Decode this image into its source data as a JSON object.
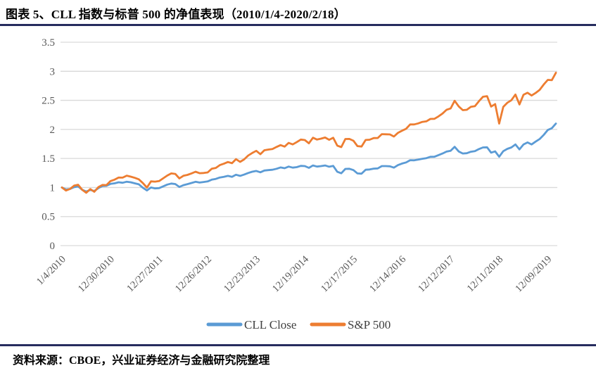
{
  "title": "图表 5、CLL 指数与标普 500 的净值表现（2010/1/4-2020/2/18）",
  "source": "资料来源：CBOE，兴业证券经济与金融研究院整理",
  "colors": {
    "accent_rule": "#262c5e",
    "cll": "#5B9BD5",
    "sp500": "#ED7D31",
    "gridline": "#D9D9D9",
    "axis_text": "#595959",
    "legend_text": "#404040"
  },
  "chart_data": {
    "type": "line",
    "title": "图表 5、CLL 指数与标普 500 的净值表现（2010/1/4-2020/2/18）",
    "xlabel": "",
    "ylabel": "",
    "ylim": [
      0,
      3.5
    ],
    "grid": "horizontal",
    "y_ticks": [
      0,
      0.5,
      1,
      1.5,
      2,
      2.5,
      3,
      3.5
    ],
    "y_tick_labels": [
      "0",
      "0.5",
      "1",
      "1.5",
      "2",
      "2.5",
      "3",
      "3.5"
    ],
    "x_tick_labels": [
      "1/4/2010",
      "12/30/2010",
      "12/27/2011",
      "12/26/2012",
      "12/23/2013",
      "12/19/2014",
      "12/17/2015",
      "12/14/2016",
      "12/12/2017",
      "12/11/2018",
      "12/09/2019"
    ],
    "x_tick_indices": [
      0,
      12,
      24,
      36,
      48,
      60,
      72,
      84,
      96,
      108,
      120
    ],
    "sampling": "net value normalized to 1.0 on 2010/1/4; monthly samples, index 0 = 2010/1/4, last index = 2020/2/18",
    "legend": {
      "position": "bottom",
      "entries": [
        "CLL Close",
        "S&P 500"
      ]
    },
    "series": [
      {
        "name": "CLL Close",
        "color": "#5B9BD5",
        "values": [
          1.0,
          0.965,
          0.975,
          1.005,
          1.02,
          0.96,
          0.93,
          0.958,
          0.94,
          0.99,
          1.025,
          1.03,
          1.062,
          1.072,
          1.09,
          1.082,
          1.1,
          1.09,
          1.072,
          1.055,
          0.995,
          0.95,
          1.0,
          0.985,
          0.99,
          1.02,
          1.05,
          1.068,
          1.06,
          1.01,
          1.04,
          1.058,
          1.078,
          1.098,
          1.085,
          1.095,
          1.105,
          1.135,
          1.148,
          1.172,
          1.185,
          1.2,
          1.185,
          1.22,
          1.2,
          1.222,
          1.25,
          1.272,
          1.285,
          1.262,
          1.292,
          1.3,
          1.305,
          1.322,
          1.345,
          1.332,
          1.36,
          1.342,
          1.35,
          1.372,
          1.368,
          1.338,
          1.38,
          1.36,
          1.368,
          1.38,
          1.358,
          1.372,
          1.27,
          1.245,
          1.32,
          1.322,
          1.3,
          1.242,
          1.238,
          1.305,
          1.31,
          1.325,
          1.328,
          1.368,
          1.368,
          1.365,
          1.342,
          1.385,
          1.412,
          1.432,
          1.47,
          1.468,
          1.48,
          1.495,
          1.505,
          1.528,
          1.53,
          1.558,
          1.585,
          1.618,
          1.632,
          1.7,
          1.62,
          1.585,
          1.59,
          1.615,
          1.625,
          1.662,
          1.69,
          1.692,
          1.6,
          1.622,
          1.53,
          1.625,
          1.665,
          1.69,
          1.742,
          1.655,
          1.742,
          1.775,
          1.742,
          1.79,
          1.835,
          1.905,
          1.99,
          2.02,
          2.1
        ]
      },
      {
        "name": "S&P 500",
        "color": "#ED7D31",
        "values": [
          1.0,
          0.948,
          0.975,
          1.032,
          1.047,
          0.962,
          0.91,
          0.972,
          0.926,
          1.007,
          1.044,
          1.042,
          1.11,
          1.135,
          1.171,
          1.17,
          1.204,
          1.187,
          1.166,
          1.141,
          1.076,
          0.999,
          1.106,
          1.101,
          1.11,
          1.158,
          1.205,
          1.243,
          1.234,
          1.157,
          1.202,
          1.217,
          1.242,
          1.272,
          1.246,
          1.25,
          1.259,
          1.322,
          1.337,
          1.385,
          1.41,
          1.439,
          1.418,
          1.488,
          1.441,
          1.484,
          1.55,
          1.594,
          1.631,
          1.573,
          1.641,
          1.653,
          1.663,
          1.698,
          1.73,
          1.704,
          1.768,
          1.741,
          1.781,
          1.825,
          1.817,
          1.761,
          1.857,
          1.825,
          1.841,
          1.86,
          1.821,
          1.857,
          1.721,
          1.695,
          1.835,
          1.836,
          1.804,
          1.712,
          1.705,
          1.818,
          1.823,
          1.851,
          1.852,
          1.918,
          1.916,
          1.914,
          1.877,
          1.941,
          1.976,
          2.011,
          2.086,
          2.085,
          2.104,
          2.129,
          2.139,
          2.18,
          2.182,
          2.224,
          2.273,
          2.337,
          2.36,
          2.492,
          2.395,
          2.331,
          2.337,
          2.388,
          2.399,
          2.486,
          2.561,
          2.572,
          2.393,
          2.436,
          2.1,
          2.387,
          2.458,
          2.502,
          2.6,
          2.429,
          2.597,
          2.631,
          2.583,
          2.627,
          2.681,
          2.772,
          2.852,
          2.847,
          2.975
        ]
      }
    ]
  }
}
